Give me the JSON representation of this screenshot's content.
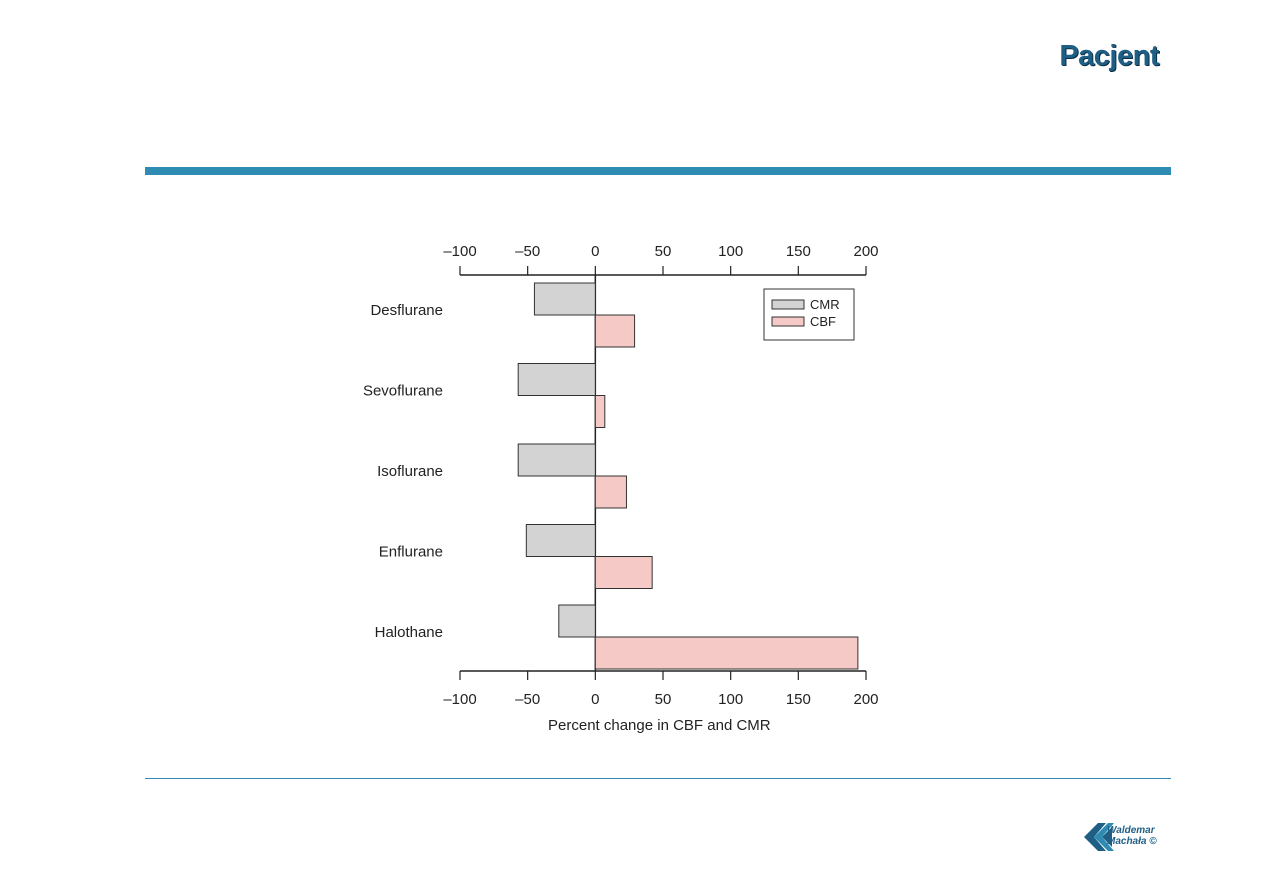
{
  "slide": {
    "title": "Pacjent"
  },
  "logo": {
    "line1": "Waldemar",
    "line2": "Machała ©"
  },
  "colors": {
    "accent": "#2e8bb2",
    "title": "#1f5f86",
    "cmr": "#d3d3d3",
    "cbf": "#f4c9c6"
  },
  "chart_data": {
    "type": "bar",
    "orientation": "horizontal",
    "categories": [
      "Desflurane",
      "Sevoflurane",
      "Isoflurane",
      "Enflurane",
      "Halothane"
    ],
    "series": [
      {
        "name": "CMR",
        "values": [
          -45,
          -57,
          -57,
          -51,
          -27
        ],
        "color": "#d3d3d3"
      },
      {
        "name": "CBF",
        "values": [
          29,
          7,
          23,
          42,
          194
        ],
        "color": "#f4c9c6"
      }
    ],
    "xlim": [
      -100,
      200
    ],
    "ticks": [
      -100,
      -50,
      0,
      50,
      100,
      150,
      200
    ],
    "tick_labels": [
      "–100",
      "–50",
      "0",
      "50",
      "100",
      "150",
      "200"
    ],
    "xlabel": "Percent change in CBF and CMR",
    "legend_position": "top-right",
    "grid": false
  }
}
